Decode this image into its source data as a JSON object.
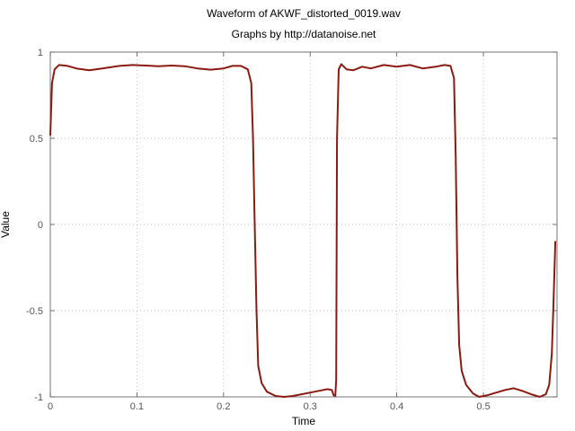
{
  "chart_data": {
    "type": "line",
    "title": "Waveform of AKWF_distorted_0019.wav",
    "subtitle": "Graphs by http://datanoise.net",
    "xlabel": "Time",
    "ylabel": "Value",
    "xlim": [
      0,
      0.585
    ],
    "ylim": [
      -1,
      1
    ],
    "grid": true,
    "x_ticks": [
      {
        "value": 0,
        "label": "0"
      },
      {
        "value": 0.1,
        "label": "0.1"
      },
      {
        "value": 0.2,
        "label": "0.2"
      },
      {
        "value": 0.3,
        "label": "0.3"
      },
      {
        "value": 0.4,
        "label": "0.4"
      },
      {
        "value": 0.5,
        "label": "0.5"
      }
    ],
    "y_ticks": [
      {
        "value": 1,
        "label": "1"
      },
      {
        "value": 0.5,
        "label": "0.5"
      },
      {
        "value": 0,
        "label": "0"
      },
      {
        "value": -0.5,
        "label": "-0.5"
      },
      {
        "value": -1,
        "label": "-1"
      }
    ],
    "series": [
      {
        "color": "#8b1a10",
        "points": [
          [
            0.0,
            0.52
          ],
          [
            0.002,
            0.82
          ],
          [
            0.005,
            0.9
          ],
          [
            0.01,
            0.925
          ],
          [
            0.02,
            0.92
          ],
          [
            0.03,
            0.905
          ],
          [
            0.045,
            0.895
          ],
          [
            0.06,
            0.905
          ],
          [
            0.08,
            0.92
          ],
          [
            0.095,
            0.925
          ],
          [
            0.11,
            0.922
          ],
          [
            0.125,
            0.918
          ],
          [
            0.14,
            0.922
          ],
          [
            0.155,
            0.918
          ],
          [
            0.17,
            0.905
          ],
          [
            0.185,
            0.898
          ],
          [
            0.2,
            0.905
          ],
          [
            0.21,
            0.92
          ],
          [
            0.22,
            0.92
          ],
          [
            0.228,
            0.9
          ],
          [
            0.232,
            0.82
          ],
          [
            0.234,
            0.5
          ],
          [
            0.236,
            0.0
          ],
          [
            0.238,
            -0.5
          ],
          [
            0.24,
            -0.82
          ],
          [
            0.244,
            -0.92
          ],
          [
            0.25,
            -0.97
          ],
          [
            0.26,
            -0.995
          ],
          [
            0.27,
            -1.0
          ],
          [
            0.28,
            -0.995
          ],
          [
            0.29,
            -0.985
          ],
          [
            0.3,
            -0.975
          ],
          [
            0.31,
            -0.965
          ],
          [
            0.32,
            -0.955
          ],
          [
            0.325,
            -0.96
          ],
          [
            0.327,
            -0.99
          ],
          [
            0.329,
            -0.995
          ],
          [
            0.33,
            -0.9
          ],
          [
            0.331,
            0.5
          ],
          [
            0.333,
            0.9
          ],
          [
            0.336,
            0.93
          ],
          [
            0.342,
            0.9
          ],
          [
            0.35,
            0.895
          ],
          [
            0.36,
            0.915
          ],
          [
            0.37,
            0.905
          ],
          [
            0.385,
            0.925
          ],
          [
            0.4,
            0.915
          ],
          [
            0.415,
            0.925
          ],
          [
            0.43,
            0.905
          ],
          [
            0.445,
            0.915
          ],
          [
            0.455,
            0.925
          ],
          [
            0.462,
            0.92
          ],
          [
            0.466,
            0.85
          ],
          [
            0.468,
            0.4
          ],
          [
            0.47,
            -0.3
          ],
          [
            0.472,
            -0.7
          ],
          [
            0.475,
            -0.85
          ],
          [
            0.48,
            -0.93
          ],
          [
            0.488,
            -0.98
          ],
          [
            0.495,
            -1.0
          ],
          [
            0.505,
            -0.99
          ],
          [
            0.515,
            -0.975
          ],
          [
            0.525,
            -0.96
          ],
          [
            0.535,
            -0.95
          ],
          [
            0.545,
            -0.965
          ],
          [
            0.555,
            -0.985
          ],
          [
            0.565,
            -1.0
          ],
          [
            0.572,
            -0.985
          ],
          [
            0.576,
            -0.93
          ],
          [
            0.579,
            -0.75
          ],
          [
            0.581,
            -0.45
          ],
          [
            0.583,
            -0.1
          ]
        ]
      }
    ]
  }
}
